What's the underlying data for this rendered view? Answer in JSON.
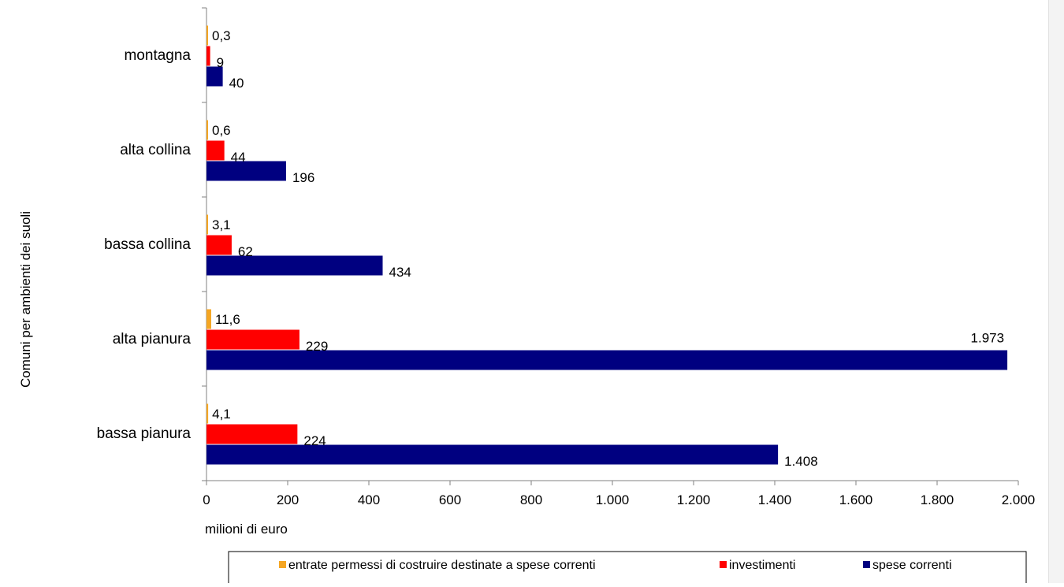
{
  "chart_data": {
    "type": "bar",
    "orientation": "horizontal",
    "title": "",
    "xlabel": "milioni di euro",
    "ylabel": "Comuni per ambienti dei suoli",
    "xlim": [
      0,
      2000
    ],
    "x_ticks": [
      0,
      200,
      400,
      600,
      800,
      1000,
      1200,
      1400,
      1600,
      1800,
      2000
    ],
    "x_tick_labels": [
      "0",
      "200",
      "400",
      "600",
      "800",
      "1.000",
      "1.200",
      "1.400",
      "1.600",
      "1.800",
      "2.000"
    ],
    "grid": false,
    "legend_position": "bottom",
    "categories": [
      "montagna",
      "alta collina",
      "bassa collina",
      "alta pianura",
      "bassa pianura"
    ],
    "series": [
      {
        "name": "entrate permessi di costruire destinate a spese correnti",
        "color": "#f5a623",
        "values": [
          0.3,
          0.6,
          3.1,
          11.6,
          4.1
        ],
        "labels": [
          "0,3",
          "0,6",
          "3,1",
          "11,6",
          "4,1"
        ]
      },
      {
        "name": "investimenti",
        "color": "#ff0000",
        "values": [
          9,
          44,
          62,
          229,
          224
        ],
        "labels": [
          "9",
          "44",
          "62",
          "229",
          "224"
        ]
      },
      {
        "name": "spese correnti",
        "color": "#000080",
        "values": [
          40,
          196,
          434,
          1973,
          1408
        ],
        "labels": [
          "40",
          "196",
          "434",
          "1.973",
          "1.408"
        ]
      }
    ]
  }
}
